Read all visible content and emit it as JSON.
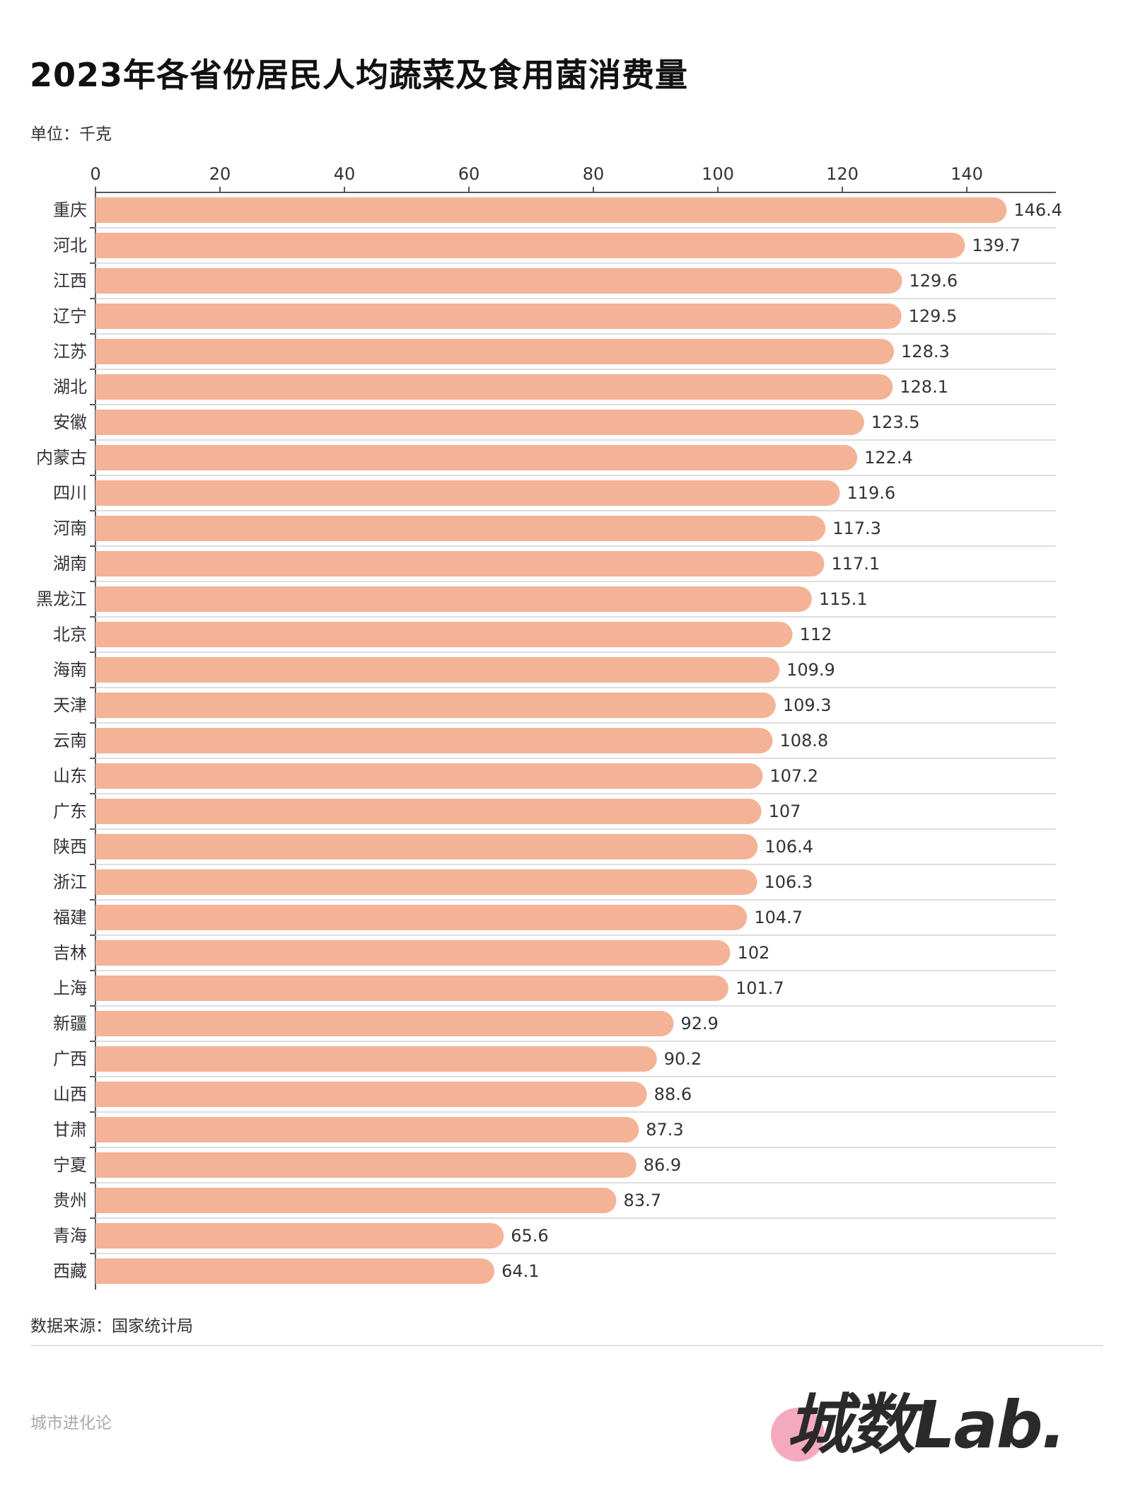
{
  "header": {
    "title": "2023年各省份居民人均蔬菜及食用菌消费量",
    "unit": "单位：千克"
  },
  "footer": {
    "source": "数据来源：国家统计局",
    "brand_text": "城市进化论",
    "logo_text": "城数Lab."
  },
  "colors": {
    "bar": "#F4B396",
    "logo_dot": "#F4A9BF"
  },
  "chart_data": {
    "type": "bar",
    "orientation": "horizontal",
    "title": "2023年各省份居民人均蔬菜及食用菌消费量",
    "xlabel": "",
    "ylabel": "",
    "unit": "千克",
    "xlim": [
      0,
      150
    ],
    "xticks": [
      0,
      20,
      40,
      60,
      80,
      100,
      120,
      140
    ],
    "axis_position": "top",
    "grid": false,
    "categories": [
      "重庆",
      "河北",
      "江西",
      "辽宁",
      "江苏",
      "湖北",
      "安徽",
      "内蒙古",
      "四川",
      "河南",
      "湖南",
      "黑龙江",
      "北京",
      "海南",
      "天津",
      "云南",
      "山东",
      "广东",
      "陕西",
      "浙江",
      "福建",
      "吉林",
      "上海",
      "新疆",
      "广西",
      "山西",
      "甘肃",
      "宁夏",
      "贵州",
      "青海",
      "西藏"
    ],
    "values": [
      146.4,
      139.7,
      129.6,
      129.5,
      128.3,
      128.1,
      123.5,
      122.4,
      119.6,
      117.3,
      117.1,
      115.1,
      112,
      109.9,
      109.3,
      108.8,
      107.2,
      107,
      106.4,
      106.3,
      104.7,
      102,
      101.7,
      92.9,
      90.2,
      88.6,
      87.3,
      86.9,
      83.7,
      65.6,
      64.1
    ],
    "value_labels": [
      "146.4",
      "139.7",
      "129.6",
      "129.5",
      "128.3",
      "128.1",
      "123.5",
      "122.4",
      "119.6",
      "117.3",
      "117.1",
      "115.1",
      "112",
      "109.9",
      "109.3",
      "108.8",
      "107.2",
      "107",
      "106.4",
      "106.3",
      "104.7",
      "102",
      "101.7",
      "92.9",
      "90.2",
      "88.6",
      "87.3",
      "86.9",
      "83.7",
      "65.6",
      "64.1"
    ],
    "source": "数据来源：国家统计局"
  }
}
